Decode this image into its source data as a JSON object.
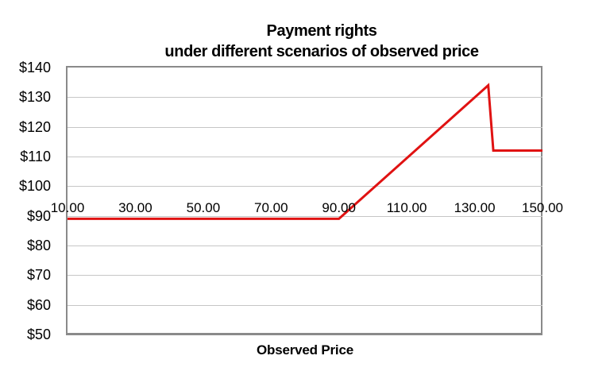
{
  "chart": {
    "title_line1": "Payment rights",
    "title_line2": "under different scenarios of observed price",
    "x_axis_title": "Observed Price"
  },
  "colors": {
    "line_red": "#e01212",
    "gridline": "#c6c6c6",
    "plot_border": "#8a8a8a",
    "text": "#000000",
    "background": "#ffffff"
  },
  "chart_data": {
    "type": "line",
    "title": "Payment rights",
    "subtitle": "under different scenarios of observed price",
    "xlabel": "Observed Price",
    "ylabel": "",
    "x_range": [
      10,
      150
    ],
    "y_range": [
      50,
      140
    ],
    "x_ticks": [
      10,
      30,
      50,
      70,
      90,
      110,
      130,
      150
    ],
    "x_tick_labels": [
      "10.00",
      "30.00",
      "50.00",
      "70.00",
      "90.00",
      "110.00",
      "130.00",
      "150.00"
    ],
    "y_ticks": [
      50,
      60,
      70,
      80,
      90,
      100,
      110,
      120,
      130,
      140
    ],
    "y_tick_labels": [
      "$50",
      "$60",
      "$70",
      "$80",
      "$90",
      "$100",
      "$110",
      "$120",
      "$130",
      "$140"
    ],
    "grid": "horizontal-only",
    "legend": "none",
    "series": [
      {
        "name": "Payment rights",
        "color": "#e01212",
        "stroke_width": 3,
        "points": [
          [
            10,
            89
          ],
          [
            90,
            89
          ],
          [
            134,
            134
          ],
          [
            135.5,
            112
          ],
          [
            150,
            112
          ]
        ]
      }
    ]
  }
}
